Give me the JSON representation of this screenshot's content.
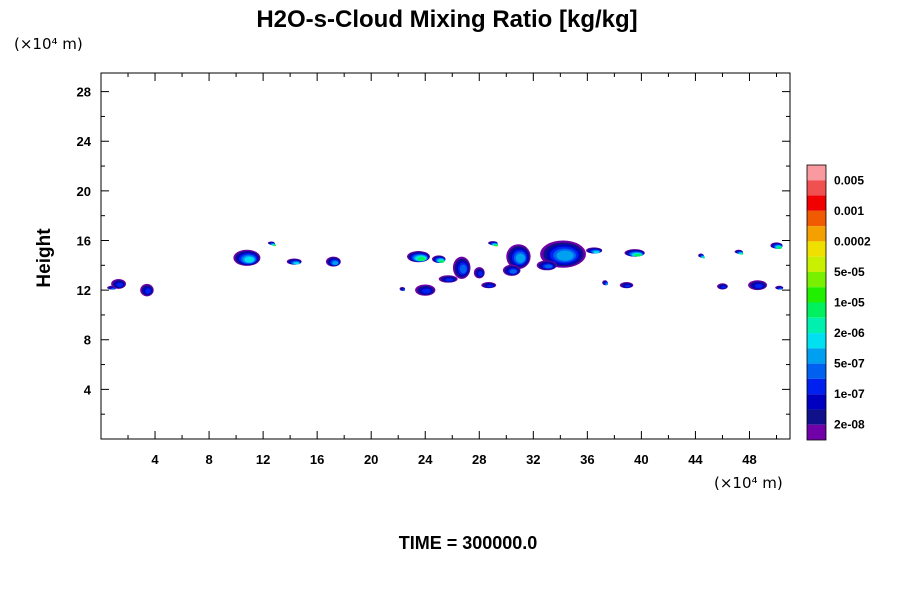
{
  "chart_data": {
    "type": "contour",
    "title": "H2O-s-Cloud Mixing Ratio [kg/kg]",
    "x_unit": "(×10⁴ m)",
    "y_unit": "(×10⁴ m)",
    "ylabel": "Height",
    "xlabel": "",
    "xlim": [
      0,
      51
    ],
    "ylim": [
      0,
      29.5
    ],
    "x_ticks": [
      4,
      8,
      12,
      16,
      20,
      24,
      28,
      32,
      36,
      40,
      44,
      48
    ],
    "x_tick_labels": [
      "4",
      "8",
      "12",
      "16",
      "20",
      "24",
      "28",
      "32",
      "36",
      "40",
      "44",
      "48"
    ],
    "y_ticks": [
      4,
      8,
      12,
      16,
      20,
      24,
      28
    ],
    "y_tick_labels": [
      "4",
      "8",
      "12",
      "16",
      "20",
      "24",
      "28"
    ],
    "footer": "TIME = 300000.0",
    "colorbar": {
      "labels": [
        "0.005",
        "0.001",
        "0.0002",
        "5e-05",
        "1e-05",
        "2e-06",
        "5e-07",
        "1e-07",
        "2e-08"
      ],
      "colors": [
        "#f89aa0",
        "#f05050",
        "#f00000",
        "#f05a00",
        "#f4a000",
        "#f0e000",
        "#c8f000",
        "#78f000",
        "#20f000",
        "#00f060",
        "#00f0b0",
        "#00e0f0",
        "#00a0f0",
        "#0060f0",
        "#0020f0",
        "#0000c0",
        "#10108a",
        "#7000a8"
      ]
    },
    "clouds": [
      {
        "x": 0.8,
        "y": 12.2,
        "w": 0.7,
        "h": 0.3,
        "level": 4
      },
      {
        "x": 1.3,
        "y": 12.5,
        "w": 1.1,
        "h": 0.8,
        "level": 3
      },
      {
        "x": 3.4,
        "y": 12.0,
        "w": 1.0,
        "h": 1.0,
        "level": 3
      },
      {
        "x": 10.8,
        "y": 14.6,
        "w": 2.0,
        "h": 1.3,
        "level": 6
      },
      {
        "x": 14.3,
        "y": 14.3,
        "w": 1.1,
        "h": 0.5,
        "level": 6
      },
      {
        "x": 17.2,
        "y": 14.3,
        "w": 1.1,
        "h": 0.8,
        "level": 5
      },
      {
        "x": 22.3,
        "y": 12.1,
        "w": 0.4,
        "h": 0.3,
        "level": 4
      },
      {
        "x": 23.5,
        "y": 14.7,
        "w": 1.7,
        "h": 0.9,
        "level": 8
      },
      {
        "x": 24.0,
        "y": 12.0,
        "w": 1.5,
        "h": 0.9,
        "level": 3
      },
      {
        "x": 25.0,
        "y": 14.5,
        "w": 1.0,
        "h": 0.6,
        "level": 8
      },
      {
        "x": 26.7,
        "y": 13.8,
        "w": 1.3,
        "h": 1.8,
        "level": 4
      },
      {
        "x": 25.7,
        "y": 12.9,
        "w": 1.4,
        "h": 0.6,
        "level": 3
      },
      {
        "x": 28.0,
        "y": 13.4,
        "w": 0.8,
        "h": 0.9,
        "level": 3
      },
      {
        "x": 28.7,
        "y": 12.4,
        "w": 1.1,
        "h": 0.5,
        "level": 3
      },
      {
        "x": 30.9,
        "y": 14.7,
        "w": 1.8,
        "h": 2.0,
        "level": 5
      },
      {
        "x": 30.4,
        "y": 13.6,
        "w": 1.3,
        "h": 0.9,
        "level": 4
      },
      {
        "x": 34.2,
        "y": 14.9,
        "w": 3.4,
        "h": 2.2,
        "level": 5
      },
      {
        "x": 36.5,
        "y": 15.2,
        "w": 1.2,
        "h": 0.5,
        "level": 6
      },
      {
        "x": 33.0,
        "y": 14.0,
        "w": 1.5,
        "h": 0.8,
        "level": 4
      },
      {
        "x": 37.3,
        "y": 12.6,
        "w": 0.4,
        "h": 0.4,
        "level": 5
      },
      {
        "x": 38.9,
        "y": 12.4,
        "w": 1.0,
        "h": 0.5,
        "level": 3
      },
      {
        "x": 39.5,
        "y": 15.0,
        "w": 1.5,
        "h": 0.6,
        "level": 8
      },
      {
        "x": 44.4,
        "y": 14.8,
        "w": 0.4,
        "h": 0.3,
        "level": 8
      },
      {
        "x": 46.0,
        "y": 12.3,
        "w": 0.8,
        "h": 0.5,
        "level": 3
      },
      {
        "x": 47.2,
        "y": 15.1,
        "w": 0.6,
        "h": 0.3,
        "level": 8
      },
      {
        "x": 48.6,
        "y": 12.4,
        "w": 1.4,
        "h": 0.8,
        "level": 3
      },
      {
        "x": 50.0,
        "y": 15.6,
        "w": 0.9,
        "h": 0.5,
        "level": 8
      },
      {
        "x": 50.2,
        "y": 12.2,
        "w": 0.6,
        "h": 0.3,
        "level": 4
      },
      {
        "x": 12.6,
        "y": 15.8,
        "w": 0.5,
        "h": 0.2,
        "level": 9
      },
      {
        "x": 29.0,
        "y": 15.8,
        "w": 0.7,
        "h": 0.3,
        "level": 9
      }
    ]
  }
}
